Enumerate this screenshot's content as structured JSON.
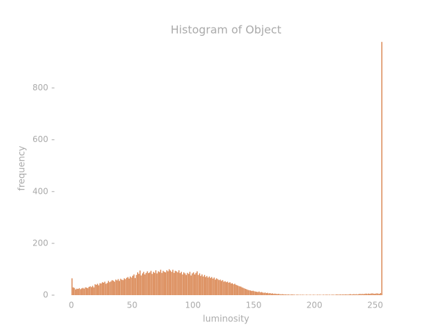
{
  "chart_data": {
    "type": "histogram",
    "title": "Histogram of Object",
    "x_label": "luminosity",
    "y_label": "frequency",
    "color": "#d9844f",
    "bins": [
      0,
      1,
      2,
      3,
      4,
      5,
      6,
      7,
      8,
      9,
      10,
      11,
      12,
      13,
      14,
      15,
      16,
      17,
      18,
      19,
      20,
      21,
      22,
      23,
      24,
      25,
      26,
      27,
      28,
      29,
      30,
      31,
      32,
      33,
      34,
      35,
      36,
      37,
      38,
      39,
      40,
      41,
      42,
      43,
      44,
      45,
      46,
      47,
      48,
      49,
      50,
      51,
      52,
      53,
      54,
      55,
      56,
      57,
      58,
      59,
      60,
      61,
      62,
      63,
      64,
      65,
      66,
      67,
      68,
      69,
      70,
      71,
      72,
      73,
      74,
      75,
      76,
      77,
      78,
      79,
      80,
      81,
      82,
      83,
      84,
      85,
      86,
      87,
      88,
      89,
      90,
      91,
      92,
      93,
      94,
      95,
      96,
      97,
      98,
      99,
      100,
      101,
      102,
      103,
      104,
      105,
      106,
      107,
      108,
      109,
      110,
      111,
      112,
      113,
      114,
      115,
      116,
      117,
      118,
      119,
      120,
      121,
      122,
      123,
      124,
      125,
      126,
      127,
      128,
      129,
      130,
      131,
      132,
      133,
      134,
      135,
      136,
      137,
      138,
      139,
      140,
      141,
      142,
      143,
      144,
      145,
      146,
      147,
      148,
      149,
      150,
      151,
      152,
      153,
      154,
      155,
      156,
      157,
      158,
      159,
      160,
      161,
      162,
      163,
      164,
      165,
      166,
      167,
      168,
      169,
      170,
      171,
      172,
      173,
      174,
      175,
      176,
      177,
      178,
      179,
      180,
      181,
      182,
      183,
      184,
      185,
      186,
      187,
      188,
      189,
      190,
      191,
      192,
      193,
      194,
      195,
      196,
      197,
      198,
      199,
      200,
      201,
      202,
      203,
      204,
      205,
      206,
      207,
      208,
      209,
      210,
      211,
      212,
      213,
      214,
      215,
      216,
      217,
      218,
      219,
      220,
      221,
      222,
      223,
      224,
      225,
      226,
      227,
      228,
      229,
      230,
      231,
      232,
      233,
      234,
      235,
      236,
      237,
      238,
      239,
      240,
      241,
      242,
      243,
      244,
      245,
      246,
      247,
      248,
      249,
      250,
      251,
      252,
      253,
      254,
      255,
      256
    ],
    "counts": [
      65,
      30,
      28,
      22,
      25,
      24,
      27,
      23,
      26,
      28,
      25,
      30,
      29,
      27,
      32,
      34,
      31,
      36,
      30,
      42,
      40,
      44,
      38,
      46,
      45,
      50,
      48,
      52,
      44,
      47,
      55,
      50,
      53,
      58,
      56,
      52,
      60,
      57,
      62,
      55,
      63,
      60,
      58,
      65,
      62,
      67,
      70,
      64,
      72,
      68,
      75,
      80,
      66,
      78,
      88,
      82,
      95,
      76,
      84,
      90,
      80,
      86,
      92,
      85,
      88,
      94,
      82,
      90,
      86,
      96,
      84,
      92,
      89,
      98,
      86,
      94,
      90,
      88,
      96,
      92,
      100,
      95,
      90,
      98,
      86,
      94,
      92,
      88,
      96,
      85,
      90,
      80,
      88,
      84,
      78,
      86,
      82,
      90,
      76,
      84,
      88,
      80,
      86,
      92,
      78,
      84,
      74,
      80,
      72,
      78,
      70,
      74,
      68,
      72,
      66,
      70,
      64,
      68,
      60,
      65,
      62,
      58,
      60,
      55,
      58,
      52,
      54,
      50,
      52,
      48,
      50,
      45,
      46,
      42,
      44,
      40,
      38,
      36,
      34,
      33,
      30,
      28,
      26,
      24,
      22,
      20,
      19,
      18,
      16,
      17,
      15,
      14,
      13,
      12,
      14,
      11,
      12,
      10,
      9,
      10,
      8,
      9,
      7,
      8,
      6,
      7,
      5,
      6,
      5,
      4,
      5,
      4,
      3,
      4,
      3,
      3,
      3,
      2,
      3,
      2,
      2,
      3,
      2,
      2,
      1,
      2,
      2,
      1,
      2,
      1,
      2,
      1,
      1,
      2,
      1,
      1,
      2,
      1,
      1,
      2,
      1,
      1,
      2,
      1,
      2,
      1,
      1,
      2,
      1,
      2,
      2,
      1,
      2,
      1,
      2,
      2,
      1,
      2,
      3,
      2,
      2,
      3,
      2,
      3,
      2,
      3,
      3,
      2,
      3,
      4,
      3,
      3,
      4,
      3,
      4,
      3,
      4,
      5,
      4,
      5,
      4,
      5,
      6,
      5,
      6,
      5,
      6,
      7,
      6,
      5,
      6,
      7,
      6,
      5,
      8,
      978
    ],
    "xlim": [
      -10,
      256
    ],
    "ylim": [
      0,
      980
    ],
    "xticks": [
      0,
      50,
      100,
      150,
      200,
      250
    ],
    "yticks": [
      0,
      200,
      400,
      600,
      800
    ]
  }
}
